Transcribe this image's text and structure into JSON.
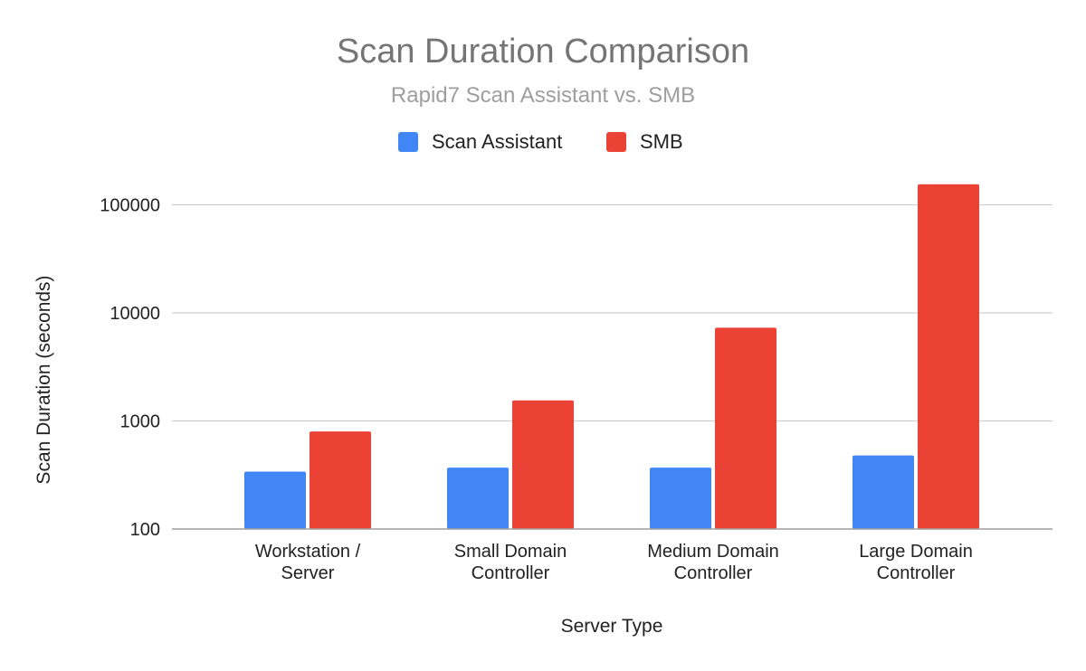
{
  "chart_data": {
    "type": "bar",
    "title": "Scan Duration Comparison",
    "subtitle": "Rapid7 Scan Assistant vs. SMB",
    "xlabel": "Server Type",
    "ylabel": "Scan Duration (seconds)",
    "yscale": "log",
    "ylim": [
      100,
      160000
    ],
    "yticks": [
      100,
      1000,
      10000,
      100000
    ],
    "ytick_labels": [
      "100",
      "1000",
      "10000",
      "100000"
    ],
    "grid": true,
    "legend_position": "top",
    "categories": [
      [
        "Workstation /",
        "Server"
      ],
      [
        "Small Domain",
        "Controller"
      ],
      [
        "Medium Domain",
        "Controller"
      ],
      [
        "Large Domain",
        "Controller"
      ]
    ],
    "series": [
      {
        "name": "Scan Assistant",
        "color": "#4285f4",
        "values": [
          340,
          370,
          370,
          480
        ]
      },
      {
        "name": "SMB",
        "color": "#ea4335",
        "values": [
          800,
          1550,
          7300,
          155000
        ]
      }
    ]
  }
}
